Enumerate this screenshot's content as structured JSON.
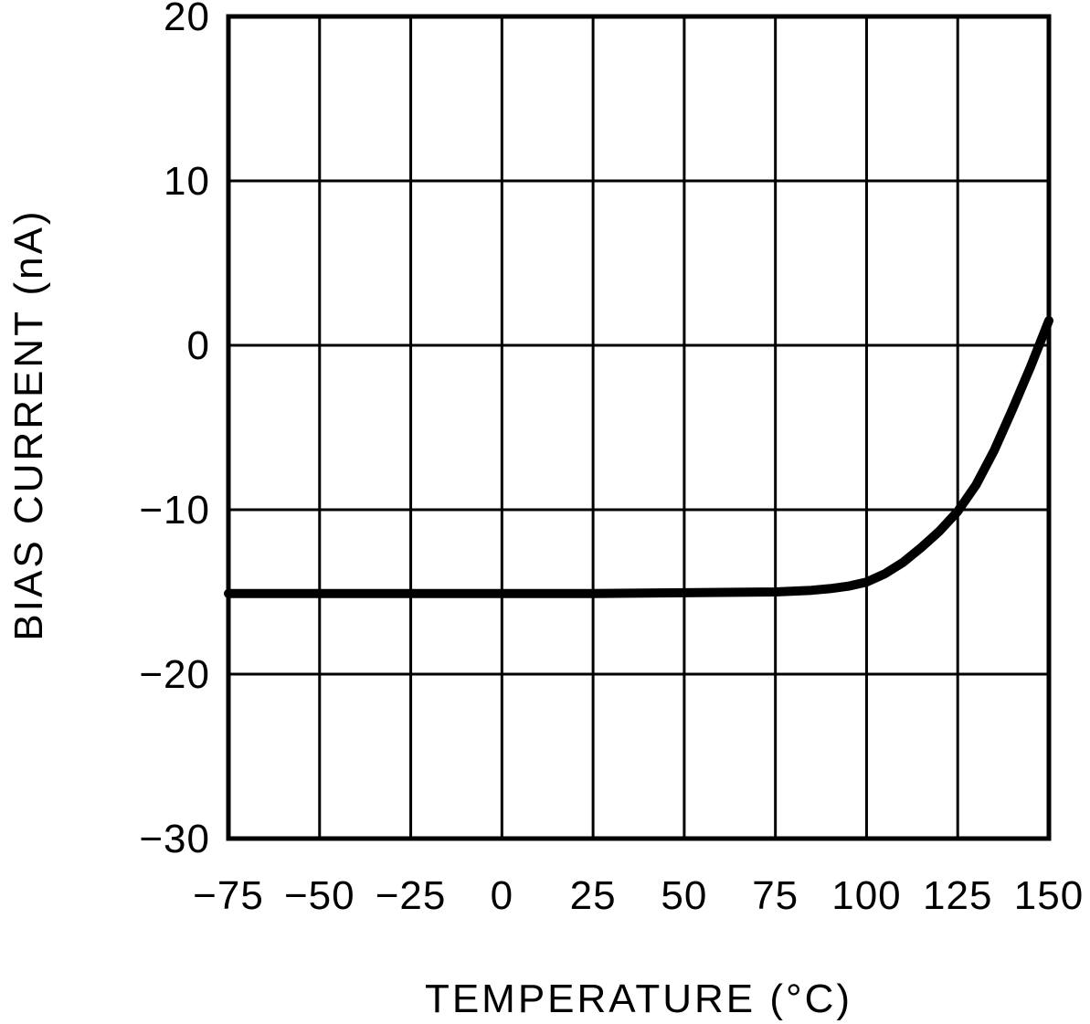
{
  "chart_data": {
    "type": "line",
    "title": "",
    "xlabel": "TEMPERATURE (°C)",
    "ylabel": "BIAS CURRENT (nA)",
    "xlim": [
      -75,
      150
    ],
    "ylim": [
      -30,
      20
    ],
    "grid": true,
    "legend": "none",
    "x_tick_values": [
      -75,
      -50,
      -25,
      0,
      25,
      50,
      75,
      100,
      125,
      150
    ],
    "x_tick_labels": [
      "−75",
      "−50",
      "−25",
      "0",
      "25",
      "50",
      "75",
      "100",
      "125",
      "150"
    ],
    "y_tick_values": [
      20,
      10,
      0,
      -10,
      -20,
      -30
    ],
    "y_tick_labels": [
      "20",
      "10",
      "0",
      "−10",
      "−20",
      "−30"
    ],
    "series": [
      {
        "x": [
          -75,
          -50,
          -25,
          0,
          25,
          50,
          75,
          80,
          85,
          90,
          95,
          100,
          105,
          110,
          115,
          120,
          125,
          130,
          135,
          140,
          145,
          150
        ],
        "y": [
          -15.1,
          -15.1,
          -15.1,
          -15.1,
          -15.1,
          -15.05,
          -15.0,
          -14.95,
          -14.9,
          -14.8,
          -14.65,
          -14.4,
          -13.9,
          -13.2,
          -12.3,
          -11.3,
          -10.1,
          -8.5,
          -6.4,
          -3.9,
          -1.3,
          1.5
        ]
      }
    ],
    "line_color": "#000000",
    "line_width": 10,
    "grid_color": "#000000",
    "background": "#ffffff"
  }
}
